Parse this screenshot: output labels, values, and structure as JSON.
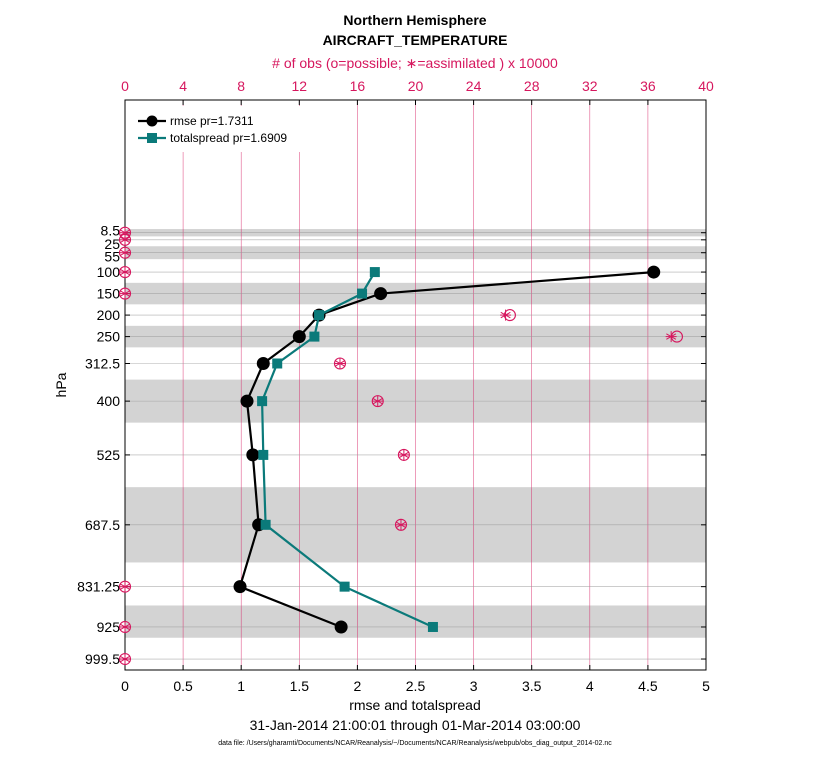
{
  "chart_data": {
    "type": "line",
    "title": "Northern Hemisphere",
    "subtitle": "AIRCRAFT_TEMPERATURE",
    "top_axis_label": "# of obs (o=possible; ∗=assimilated ) x 10000",
    "xlabel": "rmse and totalspread",
    "ylabel": "hPa",
    "footer": "31-Jan-2014 21:00:01 through 01-Mar-2014 03:00:00",
    "footnote": "data file: /Users/gharamti/Documents/NCAR/Reanalysis/~/Documents/NCAR/Reanalysis/webpub/obs_diag_output_2014-02.nc",
    "xlim": [
      0,
      5
    ],
    "x_ticks": [
      0,
      0.5,
      1,
      1.5,
      2,
      2.5,
      3,
      3.5,
      4,
      4.5,
      5
    ],
    "x_tick_labels": [
      "0",
      "0.5",
      "1",
      "1.5",
      "2",
      "2.5",
      "3",
      "3.5",
      "4",
      "4.5",
      "5"
    ],
    "top_xlim": [
      0,
      40
    ],
    "top_ticks": [
      0,
      4,
      8,
      12,
      16,
      20,
      24,
      28,
      32,
      36,
      40
    ],
    "top_tick_labels": [
      "0",
      "4",
      "8",
      "12",
      "16",
      "20",
      "24",
      "28",
      "32",
      "36",
      "40"
    ],
    "y_levels": [
      8.5,
      25,
      55,
      100,
      150,
      200,
      250,
      312.5,
      400,
      525,
      687.5,
      831.25,
      925,
      999.5
    ],
    "y_tick_labels": [
      "8.5",
      "25",
      "55",
      "100",
      "150",
      "200",
      "250",
      "312.5",
      "400",
      "525",
      "687.5",
      "831.25",
      "925",
      "999.5"
    ],
    "ylim_hPa": [
      1025,
      -300
    ],
    "y_reversed": true,
    "grid": true,
    "legend_position": "top-left",
    "band_edges": [
      [
        0,
        17
      ],
      [
        40,
        70
      ],
      [
        125,
        175
      ],
      [
        225,
        275
      ],
      [
        350,
        450
      ],
      [
        600,
        775
      ],
      [
        875,
        950
      ]
    ],
    "series": [
      {
        "name": "rmse pr=1.7311",
        "color": "#000000",
        "marker": "circle",
        "levels": [
          100,
          150,
          200,
          250,
          312.5,
          400,
          525,
          687.5,
          831.25,
          925
        ],
        "values": [
          4.55,
          2.2,
          1.67,
          1.5,
          1.19,
          1.05,
          1.1,
          1.15,
          0.99,
          1.86
        ]
      },
      {
        "name": "totalspread pr=1.6909",
        "color": "#0b7a7a",
        "marker": "square",
        "levels": [
          100,
          150,
          200,
          250,
          312.5,
          400,
          525,
          687.5,
          831.25,
          925
        ],
        "values": [
          2.15,
          2.04,
          1.67,
          1.63,
          1.31,
          1.18,
          1.19,
          1.21,
          1.89,
          2.65
        ]
      }
    ],
    "obs_counts": {
      "levels": [
        8.5,
        25,
        55,
        100,
        150,
        200,
        250,
        312.5,
        400,
        525,
        687.5,
        831.25,
        925,
        999.5
      ],
      "possible": [
        0,
        0,
        0,
        0,
        0,
        26.5,
        38,
        14.8,
        17.4,
        19.2,
        19,
        0,
        0,
        0
      ],
      "assimilated": [
        0,
        0,
        0,
        0,
        0,
        26.2,
        37.6,
        14.8,
        17.4,
        19.2,
        19,
        0,
        0,
        0
      ],
      "color": "#d6175e"
    },
    "band_color": "#d3d3d3",
    "grid_color_top": "#d6175e"
  }
}
